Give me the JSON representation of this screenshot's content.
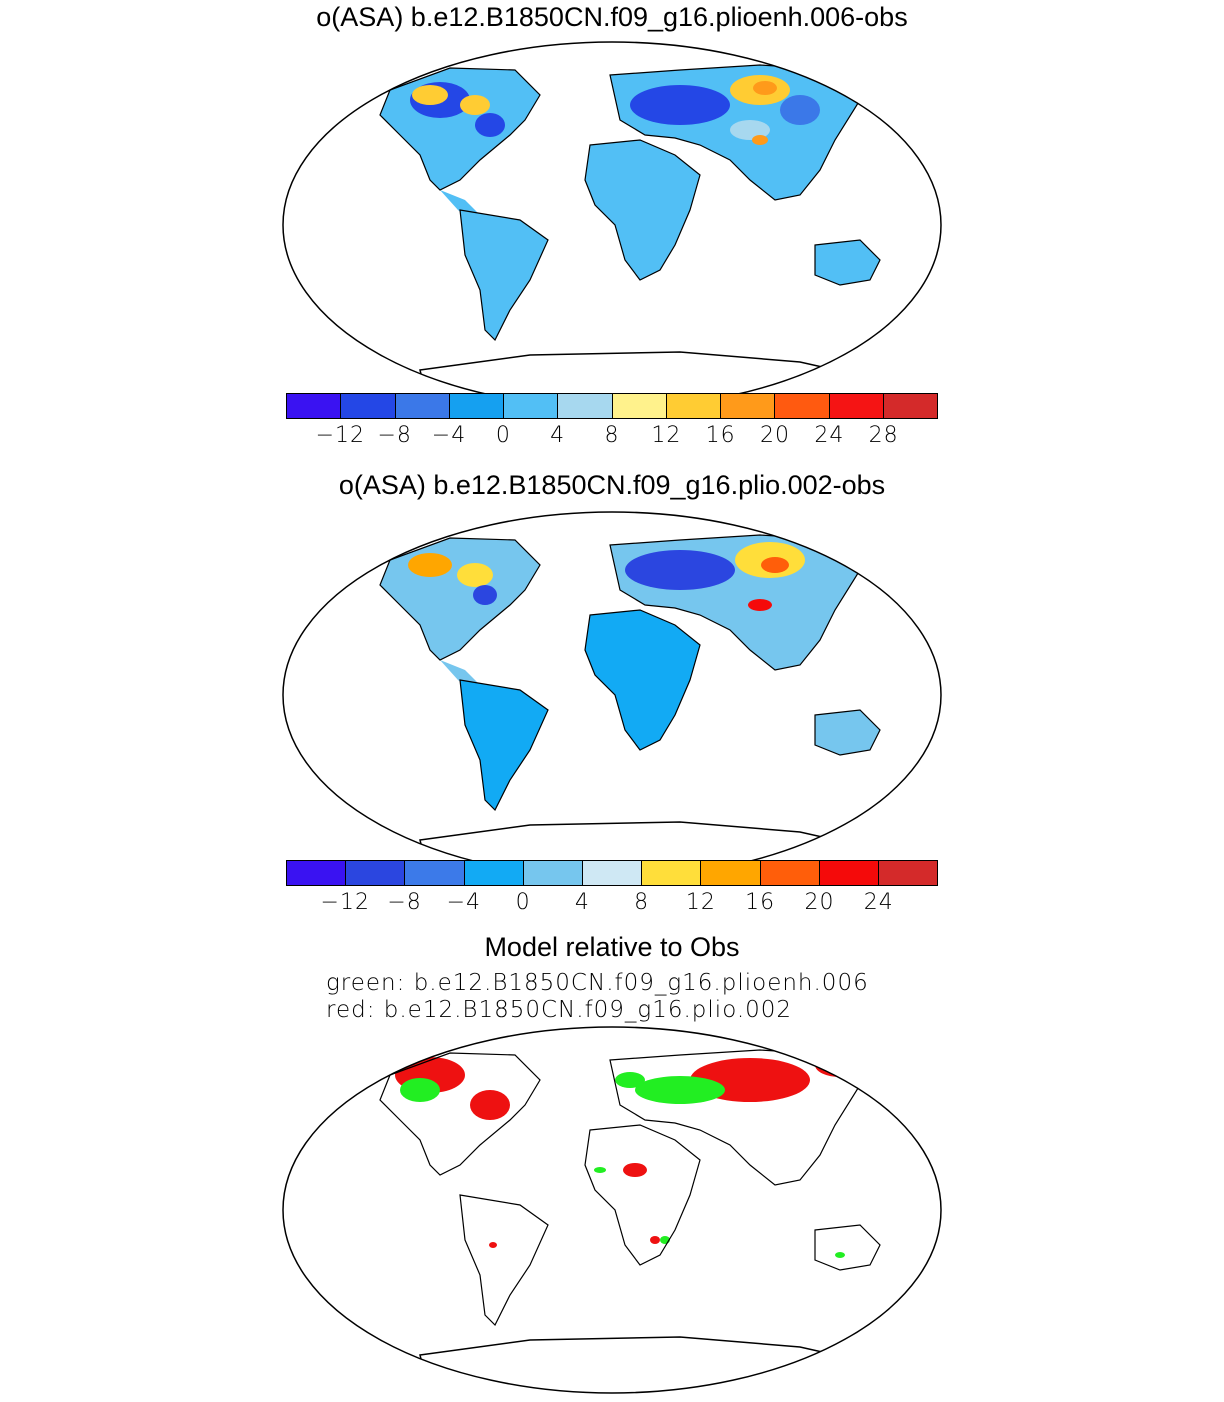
{
  "panel1": {
    "title": "o(ASA) b.e12.B1850CN.f09_g16.plioenh.006-obs",
    "colorbar": {
      "colors": [
        "#3a12f2",
        "#2447e6",
        "#3b78e8",
        "#15a0f0",
        "#52bff5",
        "#a7d8ef",
        "#fff28c",
        "#ffcc33",
        "#ff9a1a",
        "#ff5a10",
        "#f51414",
        "#d42a2a"
      ],
      "ticks": [
        "−12",
        "−8",
        "−4",
        "0",
        "4",
        "8",
        "12",
        "16",
        "20",
        "24",
        "28"
      ]
    }
  },
  "panel2": {
    "title": "o(ASA) b.e12.B1850CN.f09_g16.plio.002-obs",
    "colorbar": {
      "colors": [
        "#3a12f2",
        "#2b46e0",
        "#3c7ae9",
        "#12aaf4",
        "#76c6ee",
        "#cfe8f4",
        "#ffde3a",
        "#ffa600",
        "#ff5e0a",
        "#f50a0a",
        "#d42a2a"
      ],
      "ticks": [
        "−12",
        "−8",
        "−4",
        "0",
        "4",
        "8",
        "12",
        "16",
        "20",
        "24"
      ]
    }
  },
  "panel3": {
    "title": "Model relative to Obs",
    "legend_green": "green: b.e12.B1850CN.f09_g16.plioenh.006",
    "legend_red": "red: b.e12.B1850CN.f09_g16.plio.002",
    "green_color": "#22ee22",
    "red_color": "#ee1111"
  }
}
